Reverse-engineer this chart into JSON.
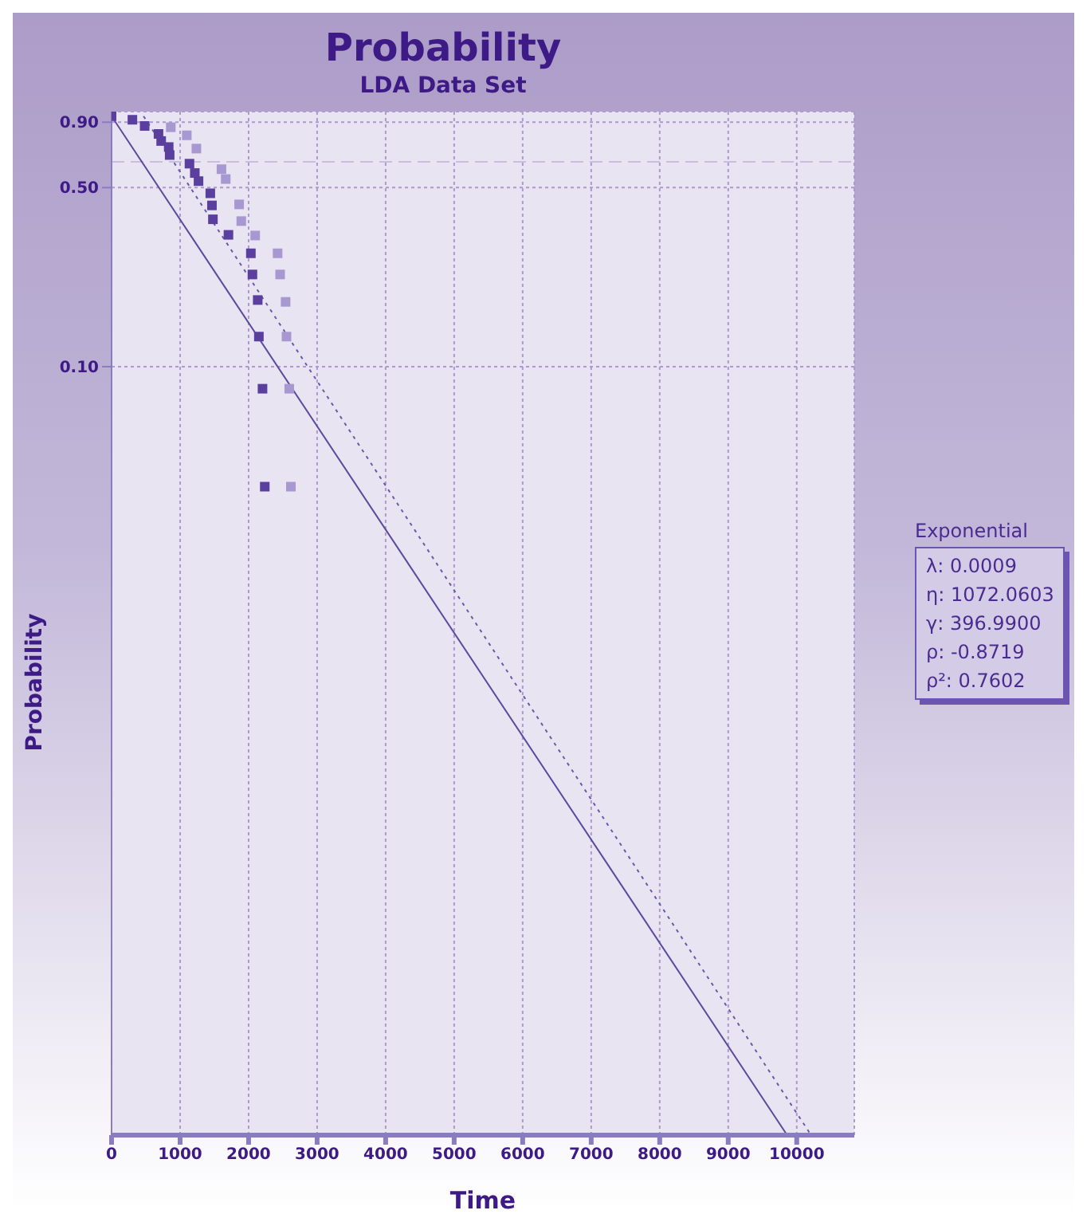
{
  "chart_data": {
    "type": "scatter",
    "title": "Probability",
    "subtitle": "LDA Data Set",
    "xlabel": "Time",
    "ylabel": "Probability",
    "xlim": [
      0,
      10840
    ],
    "xticks": [
      0,
      1000,
      2000,
      3000,
      4000,
      5000,
      6000,
      7000,
      8000,
      9000,
      10000
    ],
    "ylim": [
      0.0001,
      0.99
    ],
    "yticks": [
      {
        "value": 0.9,
        "label": "0.90"
      },
      {
        "value": 0.5,
        "label": "0.50"
      },
      {
        "value": 0.1,
        "label": "0.10"
      }
    ],
    "log": "y",
    "grid": true,
    "legend": false,
    "marker": "square",
    "series": [
      {
        "color": "#5b3f9f",
        "x": [
          0,
          304,
          483,
          685,
          724,
          834,
          848,
          1137,
          1215,
          1269,
          1441,
          1465,
          1479,
          1706,
          2033,
          2056,
          2133,
          2150,
          2203,
          2236
        ],
        "values": [
          0.95,
          0.92,
          0.87,
          0.81,
          0.76,
          0.72,
          0.67,
          0.62,
          0.57,
          0.53,
          0.475,
          0.426,
          0.376,
          0.327,
          0.277,
          0.229,
          0.182,
          0.131,
          0.082,
          0.034
        ]
      },
      {
        "color": "#a898d2",
        "marker": "square",
        "x": [
          864,
          1098,
          1238,
          1604,
          1666,
          1862,
          1893,
          2096,
          2423,
          2460,
          2540,
          2553,
          2593,
          2617
        ],
        "values": [
          0.86,
          0.8,
          0.71,
          0.59,
          0.54,
          0.43,
          0.37,
          0.325,
          0.277,
          0.229,
          0.179,
          0.131,
          0.082,
          0.034
        ]
      },
      {
        "type": "line",
        "color": "#5b4b9e",
        "marker": "none",
        "line_style": "solid",
        "x": [
          0,
          9860
        ],
        "values": [
          0.95,
          0.0001
        ]
      },
      {
        "type": "line",
        "color": "#6a5aa8",
        "marker": "none",
        "line_style": "dotted",
        "x": [
          467,
          10210
        ],
        "values": [
          0.95,
          0.0001
        ]
      }
    ],
    "ref_lines": [
      {
        "axis": "y",
        "value": 0.63,
        "color": "#c9bde0",
        "line_style": "dashed"
      }
    ],
    "annotations": [
      "Exponential",
      "λ: 0.0009",
      "η: 1072.0603",
      "γ: 396.9900",
      "ρ: -0.8719",
      "ρ²: 0.7602"
    ]
  }
}
